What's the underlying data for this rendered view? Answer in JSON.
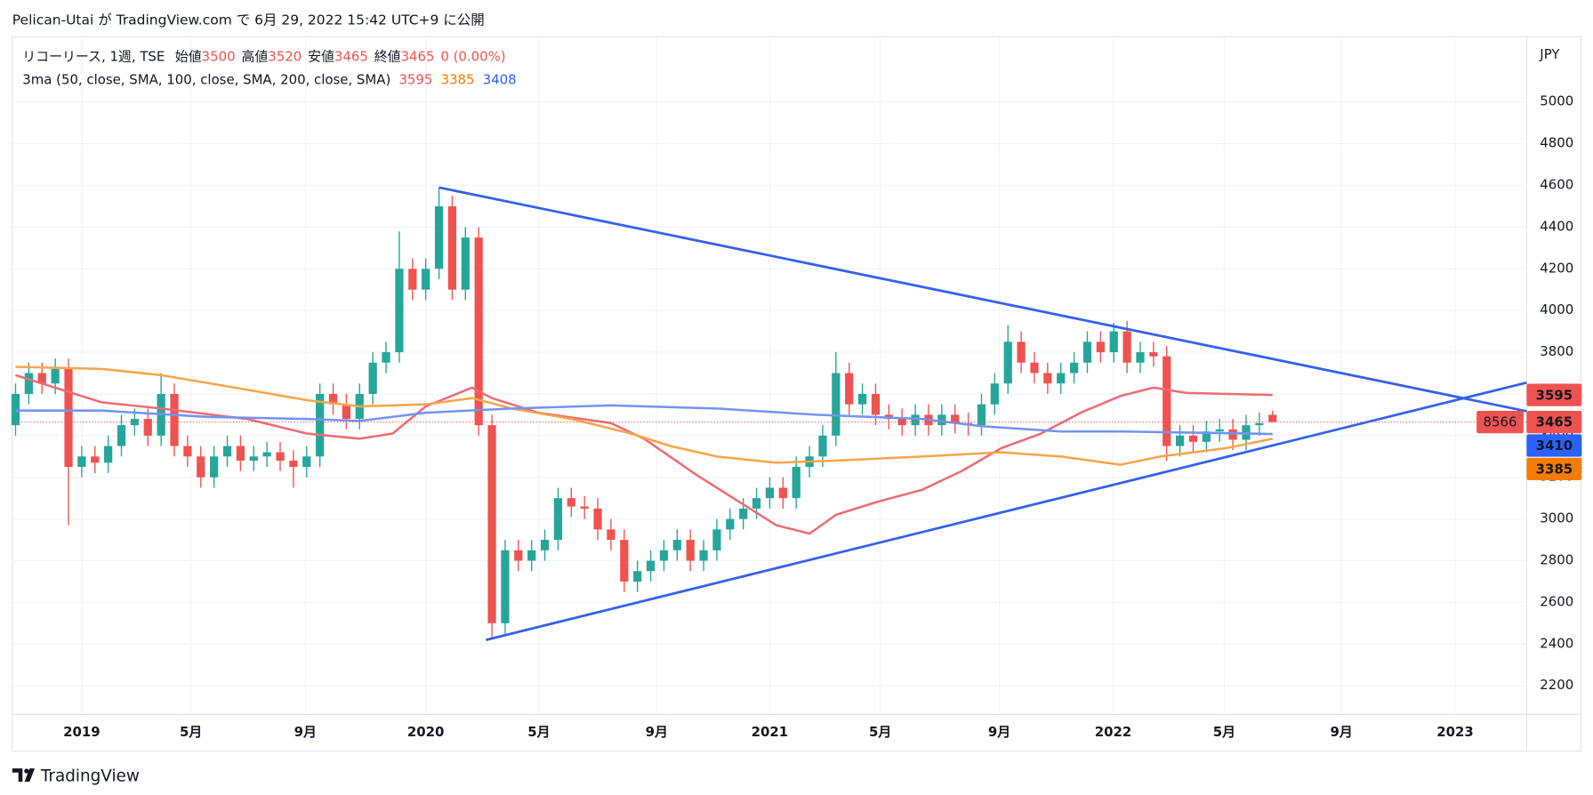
{
  "header": {
    "title": "Pelican-Utai が TradingView.com で 6月 29, 2022 15:42 UTC+9 に公開"
  },
  "legend": {
    "symbol": "リコーリース, 1週, TSE",
    "open_label": "始値",
    "high_label": "高値",
    "low_label": "安値",
    "close_label": "終値",
    "change": "0 (0.00%)",
    "indicator": "3ma (50, close, SMA, 100, close, SMA, 200, close, SMA)"
  },
  "footer": {
    "brand": "TradingView"
  },
  "chart_data": {
    "type": "candlestick",
    "currency": "JPY",
    "up_color": "#26a69a",
    "down_color": "#ef5350",
    "x": [
      -10,
      -8,
      -6,
      -4,
      -2,
      0,
      2,
      4,
      6,
      8,
      10,
      12,
      14,
      16,
      18,
      20,
      22,
      24,
      26,
      28,
      30,
      32,
      34,
      36,
      38,
      40,
      42,
      44,
      46,
      48,
      50,
      52,
      54,
      56,
      58,
      60,
      62,
      64,
      66,
      68,
      70,
      72,
      74,
      76,
      78,
      80,
      82,
      84,
      86,
      88,
      90,
      92,
      94,
      96,
      98,
      100,
      102,
      104,
      106,
      108,
      110,
      112,
      114,
      116,
      118,
      120,
      122,
      124,
      126,
      128,
      130,
      132,
      134,
      136,
      138,
      140,
      142,
      144,
      146,
      148,
      150,
      152,
      154,
      156,
      158,
      160,
      162,
      164,
      166,
      168,
      170,
      172,
      174,
      176,
      178,
      180
    ],
    "open": [
      3450,
      3600,
      3700,
      3650,
      3720,
      3250,
      3300,
      3270,
      3350,
      3450,
      3480,
      3400,
      3600,
      3350,
      3300,
      3200,
      3300,
      3350,
      3280,
      3300,
      3320,
      3280,
      3250,
      3300,
      3600,
      3550,
      3480,
      3600,
      3750,
      3800,
      4200,
      4100,
      4200,
      4500,
      4100,
      4350,
      3450,
      2500,
      2850,
      2800,
      2850,
      2900,
      3100,
      3060,
      3050,
      2950,
      2900,
      2700,
      2750,
      2800,
      2850,
      2900,
      2800,
      2850,
      2950,
      3000,
      3050,
      3100,
      3150,
      3100,
      3250,
      3300,
      3400,
      3700,
      3550,
      3600,
      3500,
      3480,
      3450,
      3500,
      3450,
      3500,
      3460,
      3450,
      3550,
      3650,
      3850,
      3750,
      3700,
      3650,
      3700,
      3750,
      3850,
      3800,
      3900,
      3750,
      3800,
      3780,
      3350,
      3400,
      3370,
      3420,
      3430,
      3380,
      3450,
      3500
    ],
    "high": [
      3650,
      3750,
      3750,
      3770,
      3770,
      3350,
      3350,
      3400,
      3500,
      3530,
      3530,
      3700,
      3650,
      3400,
      3350,
      3350,
      3400,
      3400,
      3350,
      3370,
      3370,
      3330,
      3350,
      3650,
      3650,
      3600,
      3650,
      3800,
      3850,
      4380,
      4250,
      4250,
      4590,
      4550,
      4400,
      4400,
      3500,
      2900,
      2900,
      2900,
      2950,
      3150,
      3150,
      3110,
      3100,
      3000,
      2950,
      2800,
      2850,
      2900,
      2950,
      2950,
      2900,
      3000,
      3050,
      3100,
      3150,
      3200,
      3200,
      3300,
      3350,
      3450,
      3800,
      3750,
      3650,
      3650,
      3550,
      3530,
      3550,
      3550,
      3550,
      3550,
      3510,
      3600,
      3700,
      3930,
      3900,
      3800,
      3750,
      3750,
      3800,
      3900,
      3900,
      3940,
      3950,
      3850,
      3850,
      3830,
      3450,
      3450,
      3470,
      3480,
      3480,
      3500,
      3510,
      3520
    ],
    "low": [
      3400,
      3550,
      3600,
      3600,
      2970,
      3200,
      3220,
      3220,
      3300,
      3400,
      3350,
      3350,
      3300,
      3250,
      3150,
      3150,
      3250,
      3230,
      3230,
      3250,
      3230,
      3150,
      3200,
      3250,
      3500,
      3430,
      3430,
      3550,
      3700,
      3750,
      4050,
      4050,
      4150,
      4050,
      4050,
      3400,
      2430,
      2450,
      2750,
      2750,
      2800,
      2850,
      3010,
      3000,
      2900,
      2850,
      2650,
      2650,
      2700,
      2750,
      2800,
      2750,
      2750,
      2800,
      2900,
      2950,
      3000,
      3050,
      3050,
      3050,
      3200,
      3250,
      3350,
      3500,
      3500,
      3450,
      3430,
      3400,
      3400,
      3400,
      3400,
      3410,
      3400,
      3400,
      3500,
      3600,
      3700,
      3650,
      3600,
      3600,
      3650,
      3700,
      3750,
      3750,
      3700,
      3700,
      3730,
      3280,
      3300,
      3320,
      3320,
      3370,
      3330,
      3330,
      3400,
      3465
    ],
    "close": [
      3600,
      3700,
      3650,
      3720,
      3250,
      3300,
      3270,
      3350,
      3450,
      3480,
      3400,
      3600,
      3350,
      3300,
      3200,
      3300,
      3350,
      3280,
      3300,
      3320,
      3280,
      3250,
      3300,
      3600,
      3550,
      3480,
      3600,
      3750,
      3800,
      4200,
      4100,
      4200,
      4500,
      4100,
      4350,
      3450,
      2500,
      2850,
      2800,
      2850,
      2900,
      3100,
      3060,
      3050,
      2950,
      2900,
      2700,
      2750,
      2800,
      2850,
      2900,
      2800,
      2850,
      2950,
      3000,
      3050,
      3100,
      3150,
      3100,
      3250,
      3300,
      3400,
      3700,
      3550,
      3600,
      3500,
      3480,
      3450,
      3500,
      3450,
      3500,
      3460,
      3450,
      3550,
      3650,
      3850,
      3750,
      3700,
      3650,
      3700,
      3750,
      3850,
      3800,
      3900,
      3750,
      3800,
      3780,
      3350,
      3400,
      3370,
      3420,
      3430,
      3380,
      3450,
      3460,
      3465
    ],
    "series": [
      {
        "color": "#ef6b73",
        "x": [
          -10,
          3,
          12,
          25,
          34,
          42,
          47,
          52,
          59,
          62,
          69,
          80,
          85,
          93,
          99,
          105,
          110,
          114,
          120,
          127,
          133,
          139,
          145,
          151,
          157,
          162,
          167,
          180
        ],
        "values": [
          3690,
          3560,
          3530,
          3480,
          3410,
          3385,
          3410,
          3540,
          3630,
          3580,
          3510,
          3460,
          3385,
          3210,
          3090,
          2970,
          2930,
          3020,
          3080,
          3140,
          3230,
          3340,
          3410,
          3510,
          3590,
          3630,
          3605,
          3595
        ]
      },
      {
        "color": "#f8a54a",
        "x": [
          -10,
          3,
          12,
          25,
          34,
          42,
          52,
          59,
          65,
          74,
          83,
          89,
          96,
          105,
          114,
          127,
          139,
          148,
          157,
          163,
          173,
          180
        ],
        "values": [
          3730,
          3720,
          3690,
          3620,
          3570,
          3540,
          3550,
          3580,
          3530,
          3480,
          3410,
          3350,
          3300,
          3270,
          3280,
          3300,
          3320,
          3300,
          3260,
          3300,
          3340,
          3385
        ]
      },
      {
        "color": "#7393f2",
        "x": [
          -10,
          3,
          19,
          34,
          42,
          52,
          65,
          80,
          96,
          111,
          127,
          136,
          148,
          157,
          180
        ],
        "values": [
          3520,
          3520,
          3490,
          3480,
          3470,
          3510,
          3530,
          3545,
          3530,
          3500,
          3480,
          3445,
          3420,
          3420,
          3408
        ]
      }
    ],
    "trendline_color": "#3461ec",
    "trendlines": [
      {
        "x": [
          54,
          218.4
        ],
        "y": [
          4590,
          3517
        ]
      },
      {
        "x": [
          61.1,
          218.4
        ],
        "y": [
          2420,
          3654
        ]
      }
    ],
    "price_labels": [
      {
        "value": 3595,
        "color": "#ef5350"
      },
      {
        "value": 3465,
        "color": "#ef5350"
      },
      {
        "value": 3410,
        "color": "#2962ff"
      },
      {
        "value": 3385,
        "color": "#f57c00"
      }
    ],
    "countdown_label": "8566",
    "xlim": [
      -10.5,
      218.4
    ],
    "ylim": [
      2063,
      5313
    ],
    "xticks": [
      {
        "value": 0,
        "label": "2019"
      },
      {
        "value": 16.5,
        "label": "5月"
      },
      {
        "value": 33.8,
        "label": "9月"
      },
      {
        "value": 52,
        "label": "2020"
      },
      {
        "value": 69.1,
        "label": "5月"
      },
      {
        "value": 86.9,
        "label": "9月"
      },
      {
        "value": 104,
        "label": "2021"
      },
      {
        "value": 120.7,
        "label": "5月"
      },
      {
        "value": 138.7,
        "label": "9月"
      },
      {
        "value": 155.9,
        "label": "2022"
      },
      {
        "value": 172.7,
        "label": "5月"
      },
      {
        "value": 190.4,
        "label": "9月"
      },
      {
        "value": 207.6,
        "label": "2023"
      }
    ],
    "yticks": [
      2200,
      2400,
      2600,
      2800,
      3000,
      3200,
      3400,
      3600,
      3800,
      4000,
      4200,
      4400,
      4600,
      4800,
      5000
    ],
    "grid": true
  }
}
